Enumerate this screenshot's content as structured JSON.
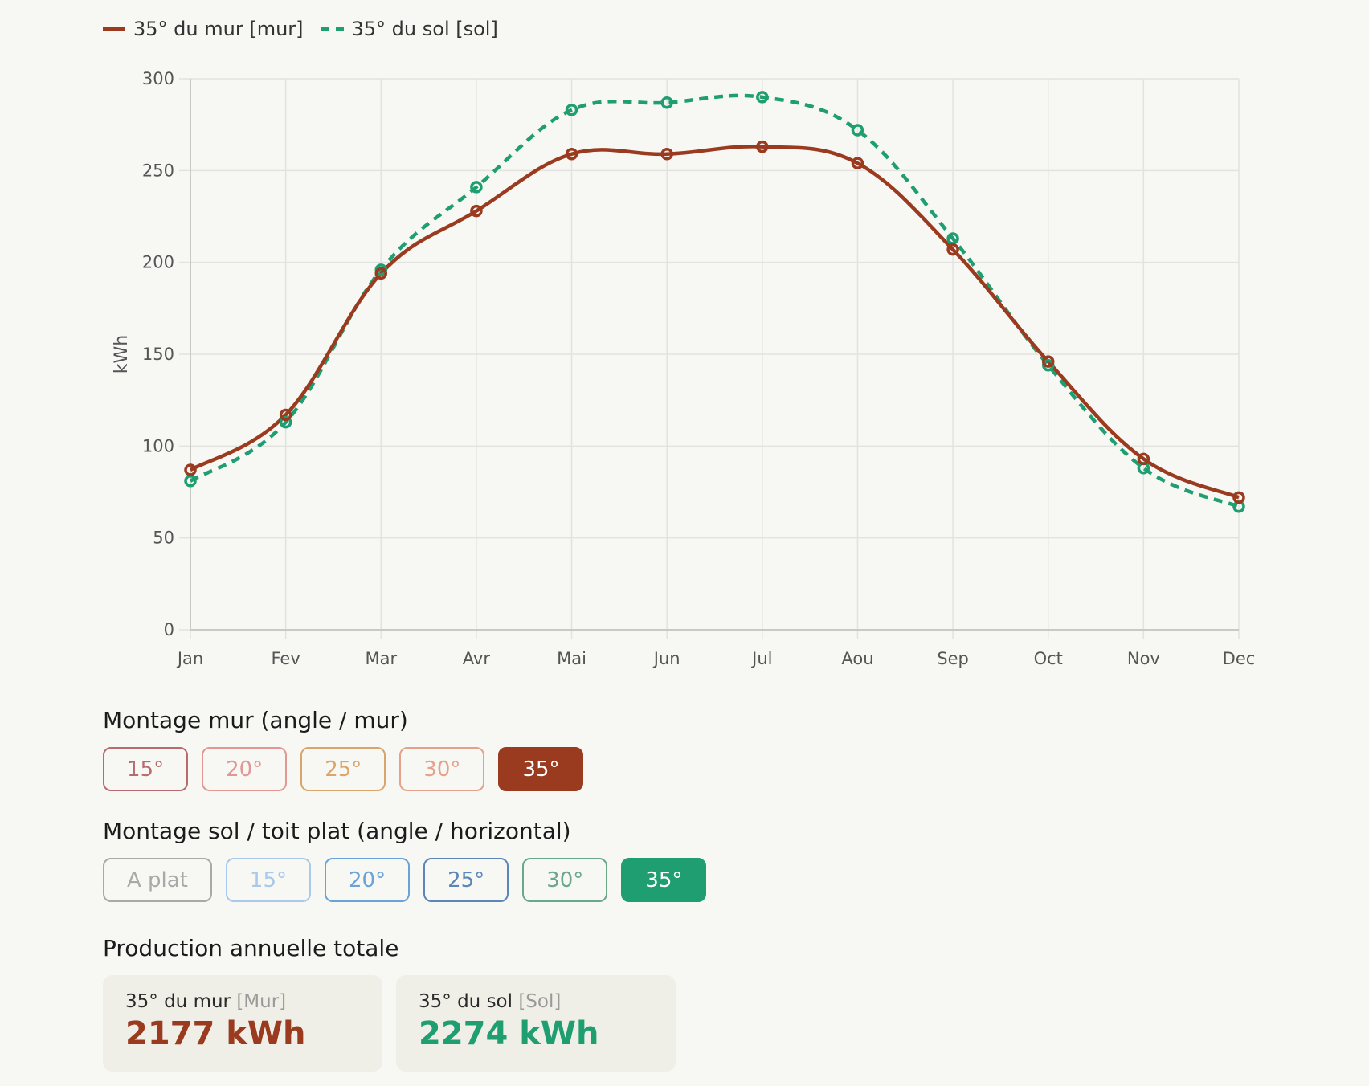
{
  "legend": [
    {
      "label": "35° du mur [mur]",
      "color": "#9a3a1f",
      "dashed": false
    },
    {
      "label": "35° du sol [sol]",
      "color": "#1f9e72",
      "dashed": true
    }
  ],
  "chart_data": {
    "type": "line",
    "categories": [
      "Jan",
      "Fev",
      "Mar",
      "Avr",
      "Mai",
      "Jun",
      "Jul",
      "Aou",
      "Sep",
      "Oct",
      "Nov",
      "Dec"
    ],
    "ylabel": "kWh",
    "ylim": [
      0,
      300
    ],
    "yticks": [
      0,
      50,
      100,
      150,
      200,
      250,
      300
    ],
    "grid": true,
    "legend_placement": "top-left",
    "series": [
      {
        "name": "35° du mur [mur]",
        "color": "#9a3a1f",
        "dashed": false,
        "values": [
          87,
          117,
          194,
          228,
          259,
          259,
          263,
          254,
          207,
          146,
          93,
          72
        ]
      },
      {
        "name": "35° du sol [sol]",
        "color": "#1f9e72",
        "dashed": true,
        "values": [
          81,
          113,
          196,
          241,
          283,
          287,
          290,
          272,
          213,
          144,
          88,
          67
        ]
      }
    ]
  },
  "wall_section": {
    "title": "Montage mur (angle / mur)",
    "buttons": [
      {
        "label": "15°",
        "color": "#b86b6f",
        "selected": false
      },
      {
        "label": "20°",
        "color": "#e39794",
        "selected": false
      },
      {
        "label": "25°",
        "color": "#d9a56a",
        "selected": false
      },
      {
        "label": "30°",
        "color": "#e3a28a",
        "selected": false
      },
      {
        "label": "35°",
        "color": "#9a3a1f",
        "selected": true
      }
    ]
  },
  "ground_section": {
    "title": "Montage sol / toit plat (angle / horizontal)",
    "buttons": [
      {
        "label": "A plat",
        "color": "#a9a9a9",
        "selected": false
      },
      {
        "label": "15°",
        "color": "#a9c9ea",
        "selected": false
      },
      {
        "label": "20°",
        "color": "#6aa3d8",
        "selected": false
      },
      {
        "label": "25°",
        "color": "#5a86b8",
        "selected": false
      },
      {
        "label": "30°",
        "color": "#6aa889",
        "selected": false
      },
      {
        "label": "35°",
        "color": "#1f9e72",
        "selected": true
      }
    ]
  },
  "totals": {
    "title": "Production annuelle totale",
    "cards": [
      {
        "label": "35° du mur",
        "bracket": "[Mur]",
        "value": "2177 kWh",
        "color": "#9a3a1f"
      },
      {
        "label": "35° du sol",
        "bracket": "[Sol]",
        "value": "2274 kWh",
        "color": "#1f9e72"
      }
    ]
  }
}
